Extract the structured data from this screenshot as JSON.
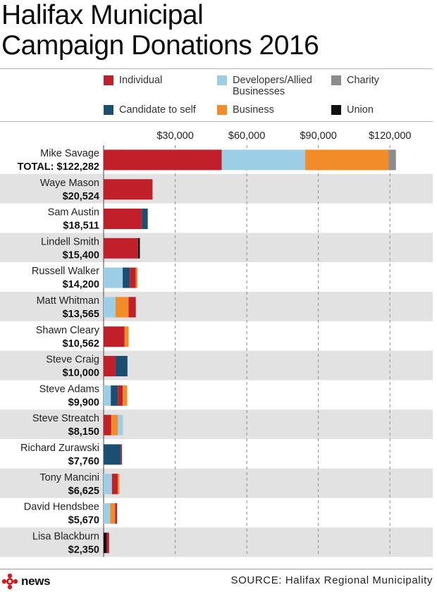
{
  "title_line1": "Halifax Municipal",
  "title_line2": "Campaign Donations 2016",
  "colors": {
    "Individual": "#c1202b",
    "Developers/Allied Businesses": "#9ccfe6",
    "Charity": "#8c8c8c",
    "Candidate to self": "#1b4f72",
    "Business": "#f28c28",
    "Union": "#111111",
    "row_shade": "#e2e2e2",
    "grid": "#8a8a8a"
  },
  "legend": [
    {
      "key": "Individual",
      "label": "Individual"
    },
    {
      "key": "Developers/Allied Businesses",
      "label": "Developers/Allied\nBusinesses"
    },
    {
      "key": "Charity",
      "label": "Charity"
    },
    {
      "key": "Candidate to self",
      "label": "Candidate to self"
    },
    {
      "key": "Business",
      "label": "Business"
    },
    {
      "key": "Union",
      "label": "Union"
    }
  ],
  "chart_data": {
    "type": "bar",
    "orientation": "horizontal",
    "stacked": true,
    "title": "Halifax Municipal Campaign Donations 2016",
    "xlim": [
      0,
      135000
    ],
    "xticks": [
      30000,
      60000,
      90000,
      120000
    ],
    "xtick_labels": [
      "$30,000",
      "$60,000",
      "$90,000",
      "$120,000"
    ],
    "series_order": [
      "Individual",
      "Developers/Allied Businesses",
      "Candidate to self",
      "Business",
      "Charity",
      "Union"
    ],
    "candidates": [
      {
        "name": "Mike Savage",
        "total": "TOTAL: $122,282",
        "segments": [
          [
            "Individual",
            49500
          ],
          [
            "Developers/Allied Businesses",
            35000
          ],
          [
            "Business",
            35000
          ],
          [
            "Charity",
            3000
          ]
        ]
      },
      {
        "name": "Waye Mason",
        "total": "$20,524",
        "segments": [
          [
            "Individual",
            20500
          ]
        ]
      },
      {
        "name": "Sam Austin",
        "total": "$18,511",
        "segments": [
          [
            "Individual",
            16000
          ],
          [
            "Candidate to self",
            2500
          ]
        ]
      },
      {
        "name": "Lindell Smith",
        "total": "$15,400",
        "segments": [
          [
            "Individual",
            14400
          ],
          [
            "Union",
            800
          ]
        ]
      },
      {
        "name": "Russell Walker",
        "total": "$14,200",
        "segments": [
          [
            "Developers/Allied Businesses",
            8000
          ],
          [
            "Candidate to self",
            3000
          ],
          [
            "Individual",
            2500
          ],
          [
            "Business",
            700
          ]
        ]
      },
      {
        "name": "Matt Whitman",
        "total": "$13,565",
        "segments": [
          [
            "Developers/Allied Businesses",
            5000
          ],
          [
            "Business",
            5500
          ],
          [
            "Individual",
            3000
          ]
        ]
      },
      {
        "name": "Shawn Cleary",
        "total": "$10,562",
        "segments": [
          [
            "Individual",
            8800
          ],
          [
            "Business",
            1700
          ]
        ]
      },
      {
        "name": "Steve Craig",
        "total": "$10,000",
        "segments": [
          [
            "Individual",
            5000
          ],
          [
            "Candidate to self",
            5000
          ]
        ]
      },
      {
        "name": "Steve Adams",
        "total": "$9,900",
        "segments": [
          [
            "Developers/Allied Businesses",
            3000
          ],
          [
            "Candidate to self",
            3000
          ],
          [
            "Individual",
            2000
          ],
          [
            "Business",
            1900
          ]
        ]
      },
      {
        "name": "Steve Streatch",
        "total": "$8,150",
        "segments": [
          [
            "Individual",
            3200
          ],
          [
            "Business",
            2800
          ],
          [
            "Developers/Allied Businesses",
            2100
          ]
        ]
      },
      {
        "name": "Richard Zurawski",
        "total": "$7,760",
        "segments": [
          [
            "Candidate to self",
            7200
          ],
          [
            "Individual",
            500
          ]
        ]
      },
      {
        "name": "Tony Mancini",
        "total": "$6,625",
        "segments": [
          [
            "Developers/Allied Businesses",
            3500
          ],
          [
            "Individual",
            2400
          ],
          [
            "Business",
            700
          ]
        ]
      },
      {
        "name": "David Hendsbee",
        "total": "$5,670",
        "segments": [
          [
            "Developers/Allied Businesses",
            2800
          ],
          [
            "Business",
            2000
          ],
          [
            "Individual",
            850
          ]
        ]
      },
      {
        "name": "Lisa Blackburn",
        "total": "$2,350",
        "segments": [
          [
            "Union",
            1300
          ],
          [
            "Individual",
            1000
          ]
        ]
      }
    ]
  },
  "footer": {
    "source": "SOURCE: Halifax Regional Municipality",
    "logo_text": "news"
  }
}
